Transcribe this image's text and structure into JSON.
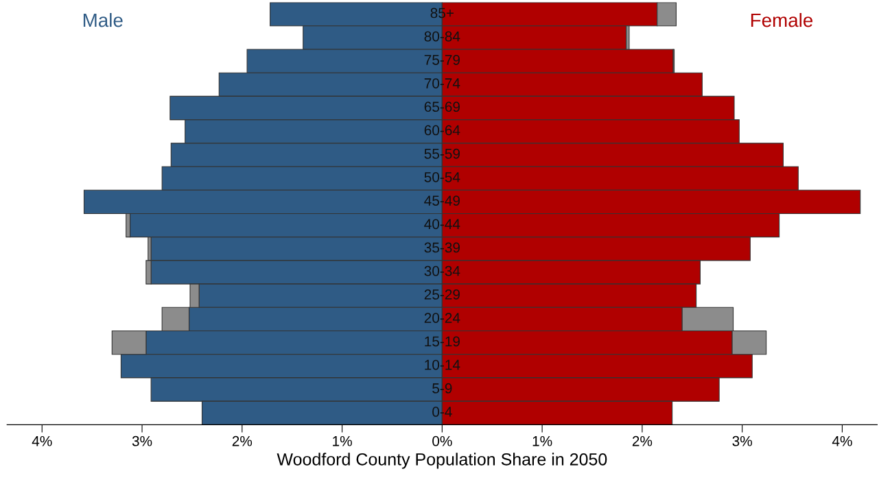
{
  "chart_data": {
    "type": "bar",
    "orientation": "horizontal",
    "stacked": true,
    "xlabel": "Woodford County Population Share in 2050",
    "categories": [
      "85+",
      "80-84",
      "75-79",
      "70-74",
      "65-69",
      "60-64",
      "55-59",
      "50-54",
      "45-49",
      "40-44",
      "35-39",
      "30-34",
      "25-29",
      "20-24",
      "15-19",
      "10-14",
      "5-9",
      "0-4"
    ],
    "series": [
      {
        "name": "Male",
        "color": "#2f5b85",
        "values": [
          -1.72,
          -1.39,
          -1.95,
          -2.23,
          -2.72,
          -2.57,
          -2.71,
          -2.8,
          -3.58,
          -3.12,
          -2.91,
          -2.91,
          -2.43,
          -2.53,
          -2.96,
          -3.21,
          -2.91,
          -2.4
        ]
      },
      {
        "color": "#8c8c8c",
        "values": [
          null,
          null,
          null,
          null,
          null,
          null,
          null,
          null,
          null,
          -0.04,
          -0.03,
          -0.05,
          -0.09,
          -0.27,
          -0.34,
          null,
          null,
          null
        ]
      },
      {
        "name": "Female",
        "color": "#b00000",
        "values": [
          2.15,
          1.84,
          2.31,
          2.6,
          2.92,
          2.97,
          3.41,
          3.56,
          4.18,
          3.37,
          3.08,
          2.58,
          2.54,
          2.4,
          2.9,
          3.1,
          2.77,
          2.3
        ]
      },
      {
        "color": "#8c8c8c",
        "values": [
          0.19,
          0.03,
          0.01,
          null,
          null,
          null,
          null,
          null,
          null,
          null,
          null,
          null,
          null,
          0.51,
          0.34,
          null,
          null,
          null
        ]
      }
    ],
    "xlim": [
      -4.35,
      4.35
    ],
    "xticks": [
      {
        "value": -4,
        "label": "4%"
      },
      {
        "value": -3,
        "label": "3%"
      },
      {
        "value": -2,
        "label": "2%"
      },
      {
        "value": -1,
        "label": "1%"
      },
      {
        "value": 0,
        "label": "0%"
      },
      {
        "value": 1,
        "label": "1%"
      },
      {
        "value": 2,
        "label": "2%"
      },
      {
        "value": 3,
        "label": "3%"
      },
      {
        "value": 4,
        "label": "4%"
      }
    ],
    "grid": false,
    "legend": false
  }
}
